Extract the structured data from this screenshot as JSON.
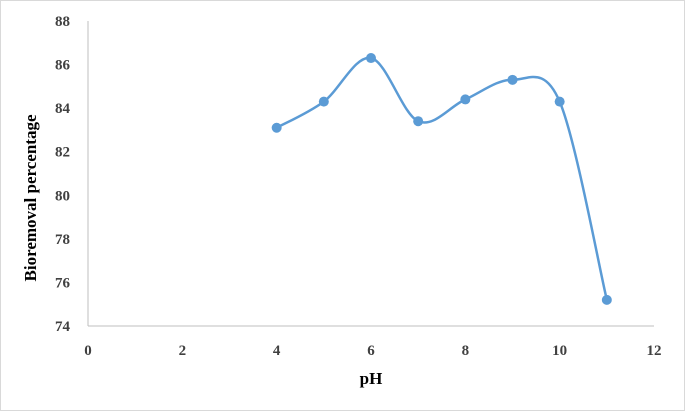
{
  "chart_data": {
    "type": "line",
    "title": "",
    "xlabel": "pH",
    "ylabel": "Bioremoval percentage",
    "xlim": [
      0,
      12
    ],
    "ylim": [
      74,
      88
    ],
    "xticks": [
      0,
      2,
      4,
      6,
      8,
      10,
      12
    ],
    "yticks": [
      74,
      76,
      78,
      80,
      82,
      84,
      86,
      88
    ],
    "xtick_labels": [
      "0",
      "2",
      "4",
      "6",
      "8",
      "10",
      "12"
    ],
    "ytick_labels": [
      "74",
      "76",
      "78",
      "80",
      "82",
      "84",
      "86",
      "88"
    ],
    "grid": false,
    "smooth": true,
    "series": [
      {
        "x": [
          4,
          5,
          6,
          7,
          8,
          9,
          10,
          11
        ],
        "values": [
          83.1,
          84.3,
          86.3,
          83.4,
          84.4,
          85.3,
          84.3,
          75.2
        ],
        "color": "#5b9bd5"
      }
    ]
  }
}
